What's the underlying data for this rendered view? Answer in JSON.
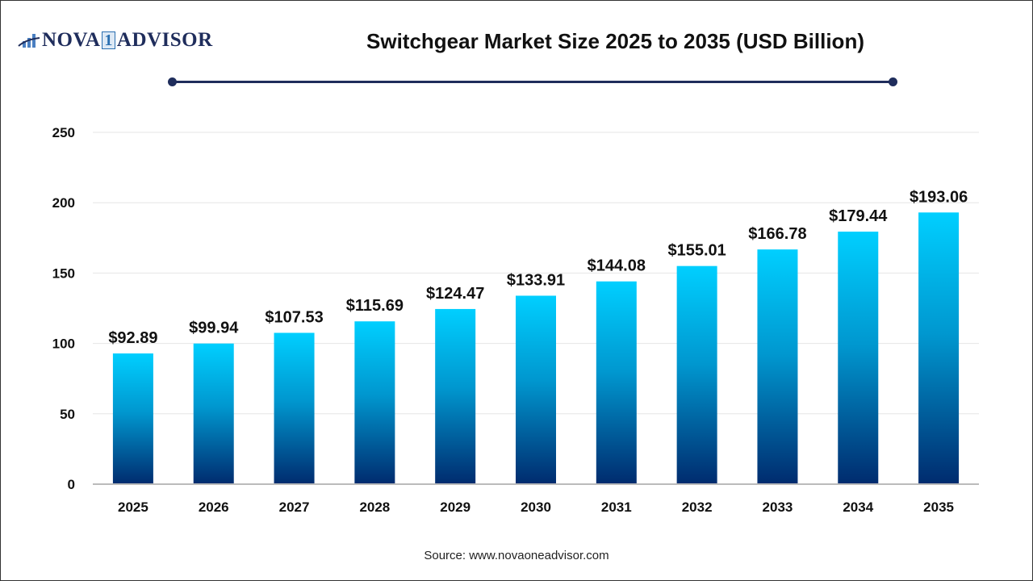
{
  "logo": {
    "text": "NOVA",
    "digit": "1",
    "text2": "ADVISOR"
  },
  "title": "Switchgear Market Size 2025 to 2035 (USD Billion)",
  "source": "Source: www.novaoneadvisor.com",
  "colors": {
    "bar_top": "#00cfff",
    "bar_bottom": "#002b6e",
    "accent": "#1f2d5c"
  },
  "chart_data": {
    "type": "bar",
    "title": "Switchgear Market Size 2025 to 2035 (USD Billion)",
    "categories": [
      "2025",
      "2026",
      "2027",
      "2028",
      "2029",
      "2030",
      "2031",
      "2032",
      "2033",
      "2034",
      "2035"
    ],
    "values": [
      92.89,
      99.94,
      107.53,
      115.69,
      124.47,
      133.91,
      144.08,
      155.01,
      166.78,
      179.44,
      193.06
    ],
    "data_labels": [
      "$92.89",
      "$99.94",
      "$107.53",
      "$115.69",
      "$124.47",
      "$133.91",
      "$144.08",
      "$155.01",
      "$166.78",
      "$179.44",
      "$193.06"
    ],
    "yticks": [
      0,
      50,
      100,
      150,
      200,
      250
    ],
    "ylim": [
      0,
      250
    ],
    "xlabel": "",
    "ylabel": "",
    "grid": true,
    "legend": "none"
  }
}
